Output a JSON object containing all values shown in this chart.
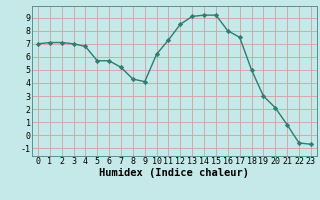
{
  "x": [
    0,
    1,
    2,
    3,
    4,
    5,
    6,
    7,
    8,
    9,
    10,
    11,
    12,
    13,
    14,
    15,
    16,
    17,
    18,
    19,
    20,
    21,
    22,
    23
  ],
  "y": [
    7.0,
    7.1,
    7.1,
    7.0,
    6.8,
    5.7,
    5.7,
    5.2,
    4.3,
    4.1,
    6.2,
    7.3,
    8.5,
    9.1,
    9.2,
    9.2,
    8.0,
    7.5,
    5.0,
    3.0,
    2.1,
    0.8,
    -0.6,
    -0.7
  ],
  "line_color": "#2e7d6e",
  "marker": "D",
  "marker_size": 2.2,
  "bg_color": "#c5e8e8",
  "grid_color": "#d4a0a0",
  "xlabel": "Humidex (Indice chaleur)",
  "xlim": [
    -0.5,
    23.5
  ],
  "ylim": [
    -1.6,
    9.9
  ],
  "yticks": [
    -1,
    0,
    1,
    2,
    3,
    4,
    5,
    6,
    7,
    8,
    9
  ],
  "xticks": [
    0,
    1,
    2,
    3,
    4,
    5,
    6,
    7,
    8,
    9,
    10,
    11,
    12,
    13,
    14,
    15,
    16,
    17,
    18,
    19,
    20,
    21,
    22,
    23
  ],
  "tick_fontsize": 6.0,
  "xlabel_fontsize": 7.5,
  "linewidth": 1.0
}
